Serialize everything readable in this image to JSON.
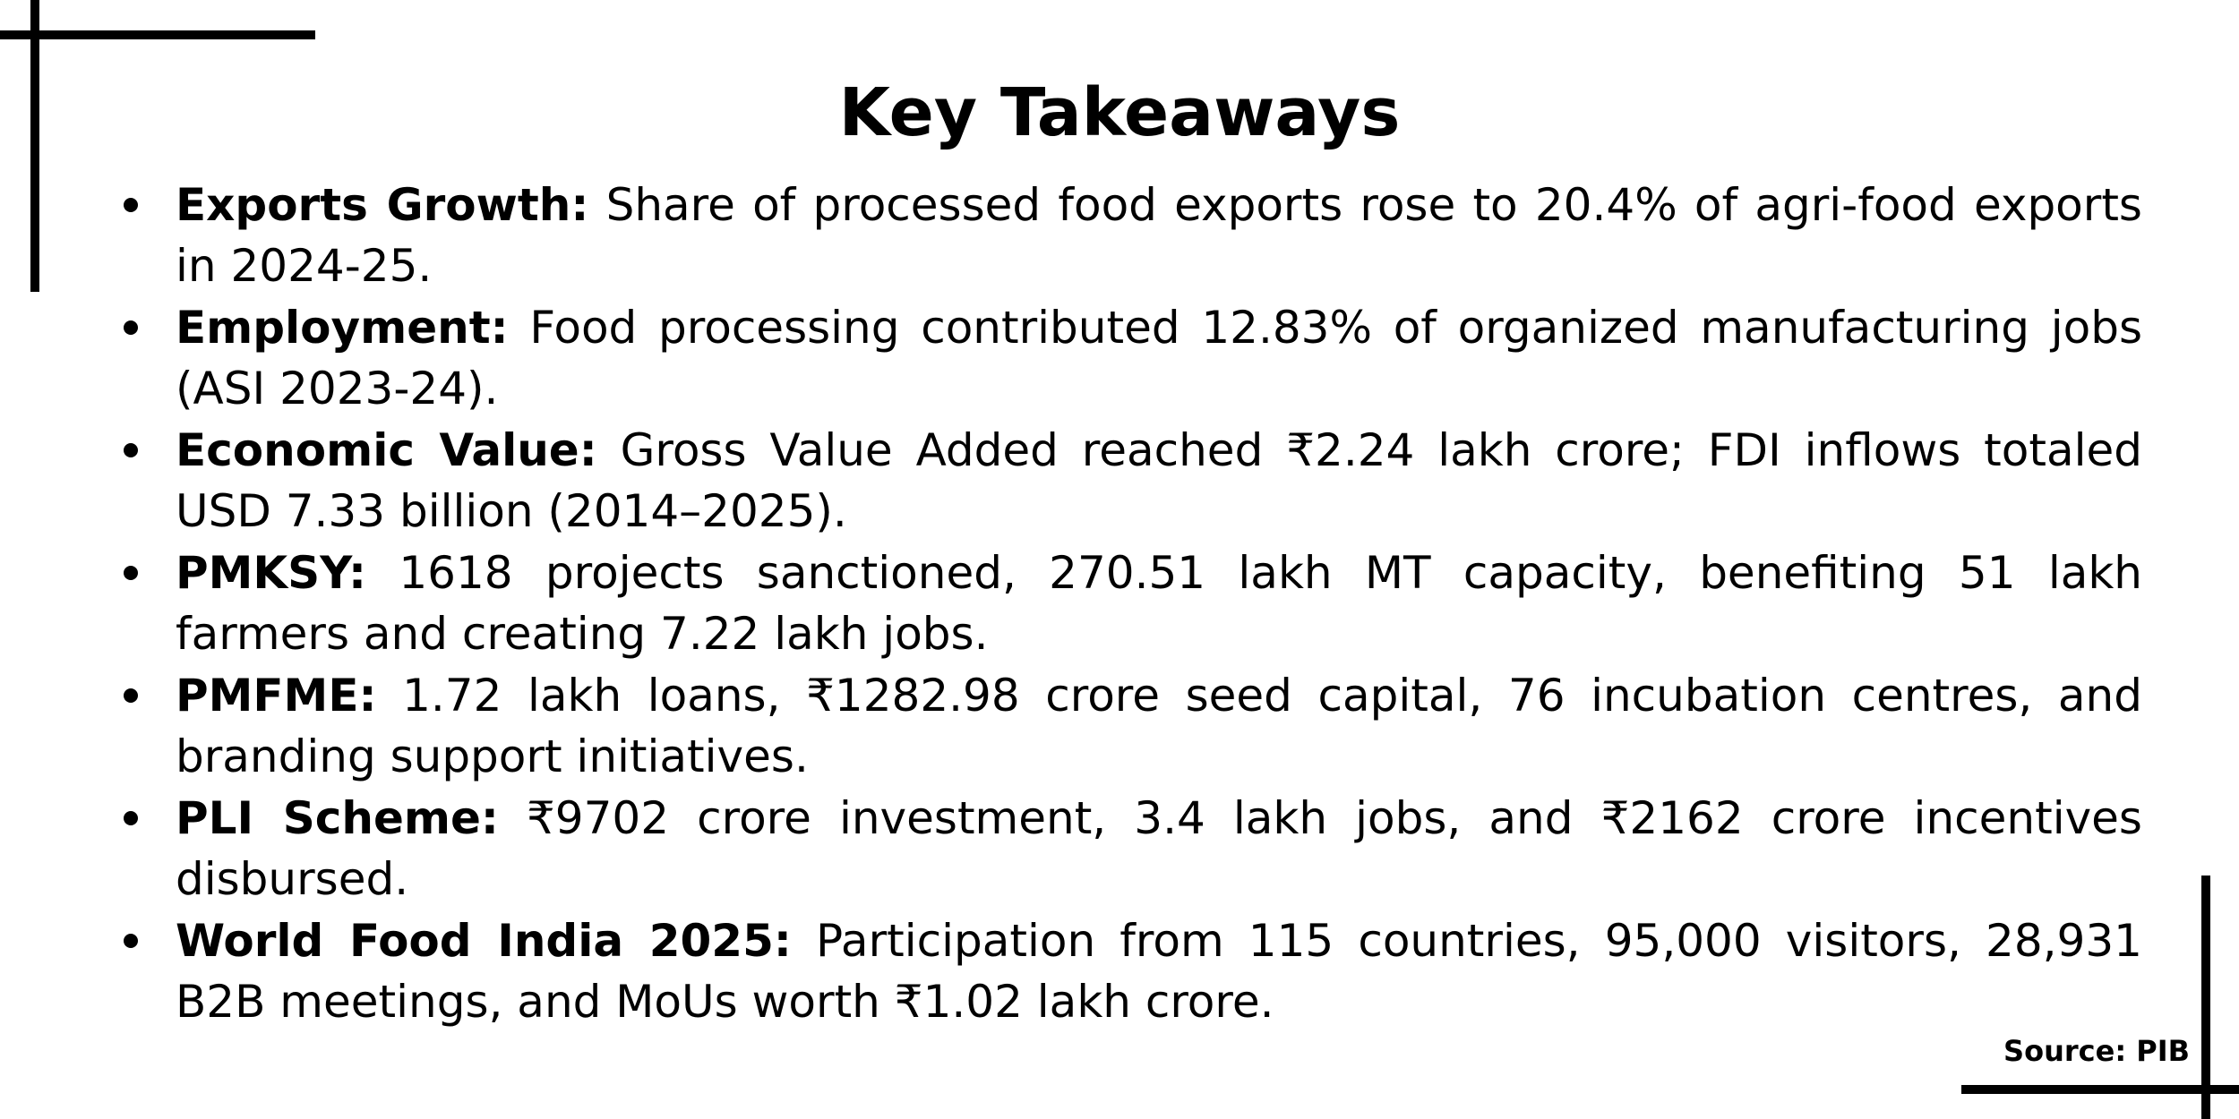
{
  "title": "Key Takeaways",
  "takeaways": [
    {
      "label": "Exports Growth:",
      "text": "Share of processed food exports rose to 20.4% of agri-food exports in 2024-25."
    },
    {
      "label": "Employment:",
      "text": "Food processing contributed 12.83% of organized manufacturing jobs (ASI 2023-24)."
    },
    {
      "label": "Economic Value:",
      "text": "Gross Value Added reached ₹2.24 lakh crore; FDI inflows totaled USD 7.33 billion (2014–2025)."
    },
    {
      "label": "PMKSY:",
      "text": "1618 projects sanctioned, 270.51 lakh MT capacity, benefiting 51 lakh farmers and creating 7.22 lakh jobs."
    },
    {
      "label": "PMFME:",
      "text": "1.72 lakh loans, ₹1282.98 crore seed capital, 76 incubation centres, and branding support initiatives."
    },
    {
      "label": "PLI Scheme:",
      "text": "₹9702 crore investment, 3.4 lakh jobs, and ₹2162 crore incentives disbursed."
    },
    {
      "label": "World Food India 2025:",
      "text": "Participation from 115 countries, 95,000 visitors, 28,931 B2B meetings, and MoUs worth ₹1.02 lakh crore."
    }
  ],
  "source": "Source: PIB"
}
